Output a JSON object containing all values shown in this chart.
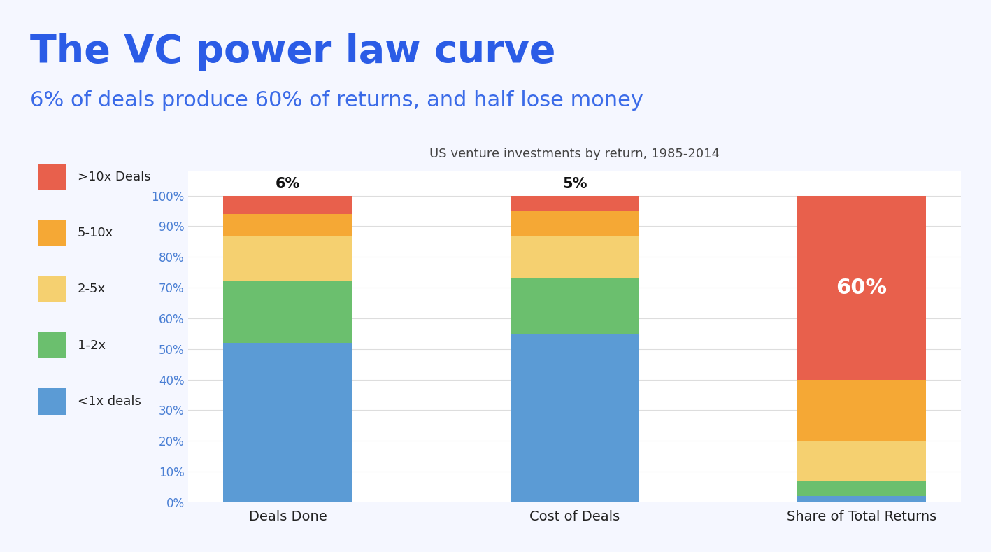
{
  "title": "The VC power law curve",
  "subtitle": "6% of deals produce 60% of returns, and half lose money",
  "chart_title": "US venture investments by return, 1985-2014",
  "categories": [
    "Deals Done",
    "Cost of Deals",
    "Share of Total Returns"
  ],
  "segment_labels": [
    ">10x Deals",
    "5-10x",
    "2-5x",
    "1-2x",
    "<1x deals"
  ],
  "segment_colors": [
    "#E8604C",
    "#F5A835",
    "#F5D070",
    "#6BBF6E",
    "#5B9BD5"
  ],
  "values_by_cat": [
    [
      52,
      20,
      15,
      7,
      6
    ],
    [
      55,
      18,
      14,
      8,
      5
    ],
    [
      2,
      5,
      13,
      20,
      60
    ]
  ],
  "bar_top_labels": [
    "6%",
    "5%",
    null
  ],
  "bar_annotations": [
    null,
    null,
    "60%"
  ],
  "title_color": "#2B5CE6",
  "subtitle_color": "#3B6BE8",
  "chart_title_color": "#444444",
  "ytick_color": "#4A7FD4",
  "xtick_color": "#222222",
  "grid_color": "#DDDDDD",
  "bar_width": 0.45,
  "ylim_max": 108,
  "figsize": [
    14.17,
    7.89
  ],
  "dpi": 100,
  "bg_color": "#F5F7FF"
}
